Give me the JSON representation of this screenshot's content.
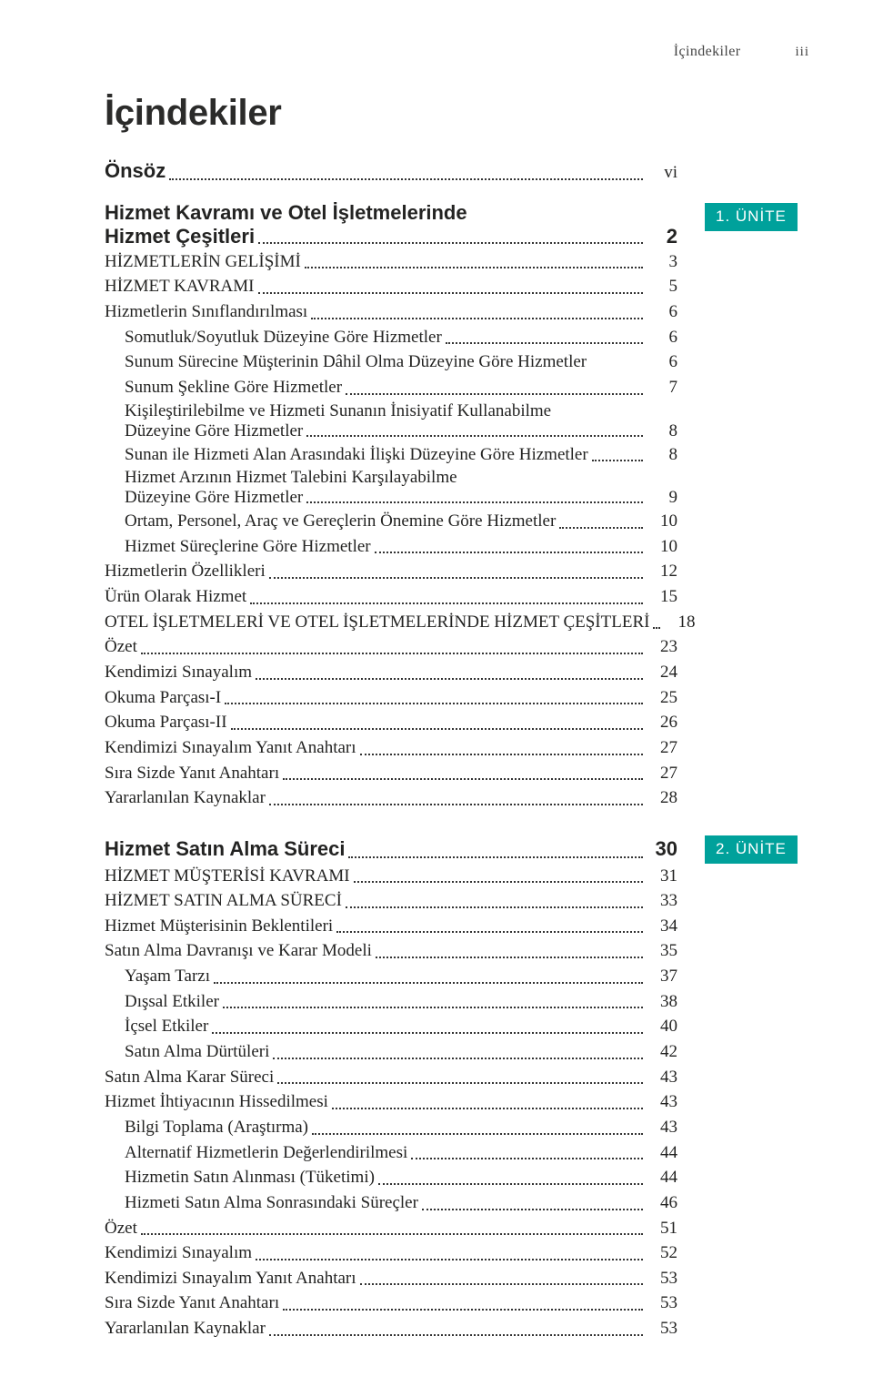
{
  "colors": {
    "text": "#232322",
    "background": "#ffffff",
    "badge_bg": "#00a19b",
    "badge_text": "#ffffff",
    "leader": "#333333"
  },
  "typography": {
    "body_font": "Garamond/Georgia serif",
    "body_fontsize_pt": 14,
    "heading_font": "Helvetica Neue sans-serif",
    "heading_fontsize_pt": 30,
    "section_title_fontsize_pt": 16.5,
    "badge_fontsize_pt": 13
  },
  "page": {
    "running_head": "İçindekiler",
    "folio": "iii",
    "heading": "İçindekiler"
  },
  "onsoz": {
    "label": "Önsöz",
    "page": "vi"
  },
  "unit1": {
    "badge": "1. ÜNİTE",
    "title": {
      "line1": "Hizmet Kavramı ve Otel İşletmelerinde",
      "line2": "Hizmet Çeşitleri",
      "page": "2"
    },
    "entries": [
      {
        "text": "HİZMETLERİN GELİŞİMİ",
        "page": "3",
        "indent": 0
      },
      {
        "text": "HİZMET KAVRAMI",
        "page": "5",
        "indent": 0
      },
      {
        "text": "Hizmetlerin Sınıflandırılması",
        "page": "6",
        "indent": 0
      },
      {
        "text": "Somutluk/Soyutluk Düzeyine Göre Hizmetler",
        "page": "6",
        "indent": 1
      },
      {
        "text": "Sunum Sürecine Müşterinin Dâhil Olma Düzeyine Göre Hizmetler",
        "page": "6",
        "indent": 1,
        "nodots": true
      },
      {
        "text": "Sunum Şekline Göre Hizmetler",
        "page": "7",
        "indent": 1
      },
      {
        "wrap": true,
        "indent": 1,
        "line1": "Kişileştirilebilme ve Hizmeti Sunanın İnisiyatif Kullanabilme",
        "line2": "Düzeyine Göre Hizmetler",
        "page": "8"
      },
      {
        "text": "Sunan ile Hizmeti Alan Arasındaki İlişki Düzeyine Göre Hizmetler",
        "page": "8",
        "indent": 1
      },
      {
        "wrap": true,
        "indent": 1,
        "line1": "Hizmet Arzının Hizmet Talebini Karşılayabilme",
        "line2": "Düzeyine Göre Hizmetler",
        "page": "9"
      },
      {
        "text": "Ortam, Personel, Araç ve Gereçlerin Önemine Göre Hizmetler",
        "page": "10",
        "indent": 1
      },
      {
        "text": "Hizmet Süreçlerine Göre Hizmetler",
        "page": "10",
        "indent": 1
      },
      {
        "text": "Hizmetlerin Özellikleri",
        "page": "12",
        "indent": 0
      },
      {
        "text": "Ürün Olarak Hizmet",
        "page": "15",
        "indent": 0
      },
      {
        "text": "OTEL İŞLETMELERİ VE OTEL İŞLETMELERİNDE HİZMET ÇEŞİTLERİ",
        "page": "18",
        "indent": 0
      },
      {
        "text": "Özet",
        "page": "23",
        "indent": 0
      },
      {
        "text": "Kendimizi Sınayalım",
        "page": "24",
        "indent": 0
      },
      {
        "text": "Okuma Parçası-I",
        "page": "25",
        "indent": 0
      },
      {
        "text": "Okuma Parçası-II",
        "page": "26",
        "indent": 0
      },
      {
        "text": "Kendimizi Sınayalım Yanıt Anahtarı",
        "page": "27",
        "indent": 0
      },
      {
        "text": "Sıra Sizde Yanıt Anahtarı",
        "page": "27",
        "indent": 0
      },
      {
        "text": "Yararlanılan Kaynaklar",
        "page": "28",
        "indent": 0
      }
    ]
  },
  "unit2": {
    "badge": "2. ÜNİTE",
    "title": {
      "text": "Hizmet Satın Alma Süreci",
      "page": "30"
    },
    "entries": [
      {
        "text": "HİZMET MÜŞTERİSİ KAVRAMI",
        "page": "31",
        "indent": 0
      },
      {
        "text": "HİZMET SATIN ALMA SÜRECİ",
        "page": "33",
        "indent": 0
      },
      {
        "text": "Hizmet Müşterisinin Beklentileri",
        "page": "34",
        "indent": 0
      },
      {
        "text": "Satın Alma Davranışı ve Karar Modeli",
        "page": "35",
        "indent": 0
      },
      {
        "text": "Yaşam Tarzı",
        "page": "37",
        "indent": 1
      },
      {
        "text": "Dışsal Etkiler",
        "page": "38",
        "indent": 1
      },
      {
        "text": "İçsel Etkiler",
        "page": "40",
        "indent": 1
      },
      {
        "text": "Satın Alma Dürtüleri",
        "page": "42",
        "indent": 1
      },
      {
        "text": "Satın Alma Karar Süreci",
        "page": "43",
        "indent": 0
      },
      {
        "text": "Hizmet İhtiyacının Hissedilmesi",
        "page": "43",
        "indent": 0
      },
      {
        "text": "Bilgi Toplama (Araştırma)",
        "page": "43",
        "indent": 1
      },
      {
        "text": "Alternatif Hizmetlerin Değerlendirilmesi",
        "page": "44",
        "indent": 1
      },
      {
        "text": "Hizmetin Satın Alınması (Tüketimi)",
        "page": "44",
        "indent": 1
      },
      {
        "text": "Hizmeti Satın Alma Sonrasındaki Süreçler",
        "page": "46",
        "indent": 1
      },
      {
        "text": "Özet",
        "page": "51",
        "indent": 0
      },
      {
        "text": "Kendimizi Sınayalım",
        "page": "52",
        "indent": 0
      },
      {
        "text": "Kendimizi Sınayalım Yanıt Anahtarı",
        "page": "53",
        "indent": 0
      },
      {
        "text": "Sıra Sizde Yanıt Anahtarı",
        "page": "53",
        "indent": 0
      },
      {
        "text": "Yararlanılan Kaynaklar",
        "page": "53",
        "indent": 0
      }
    ]
  }
}
